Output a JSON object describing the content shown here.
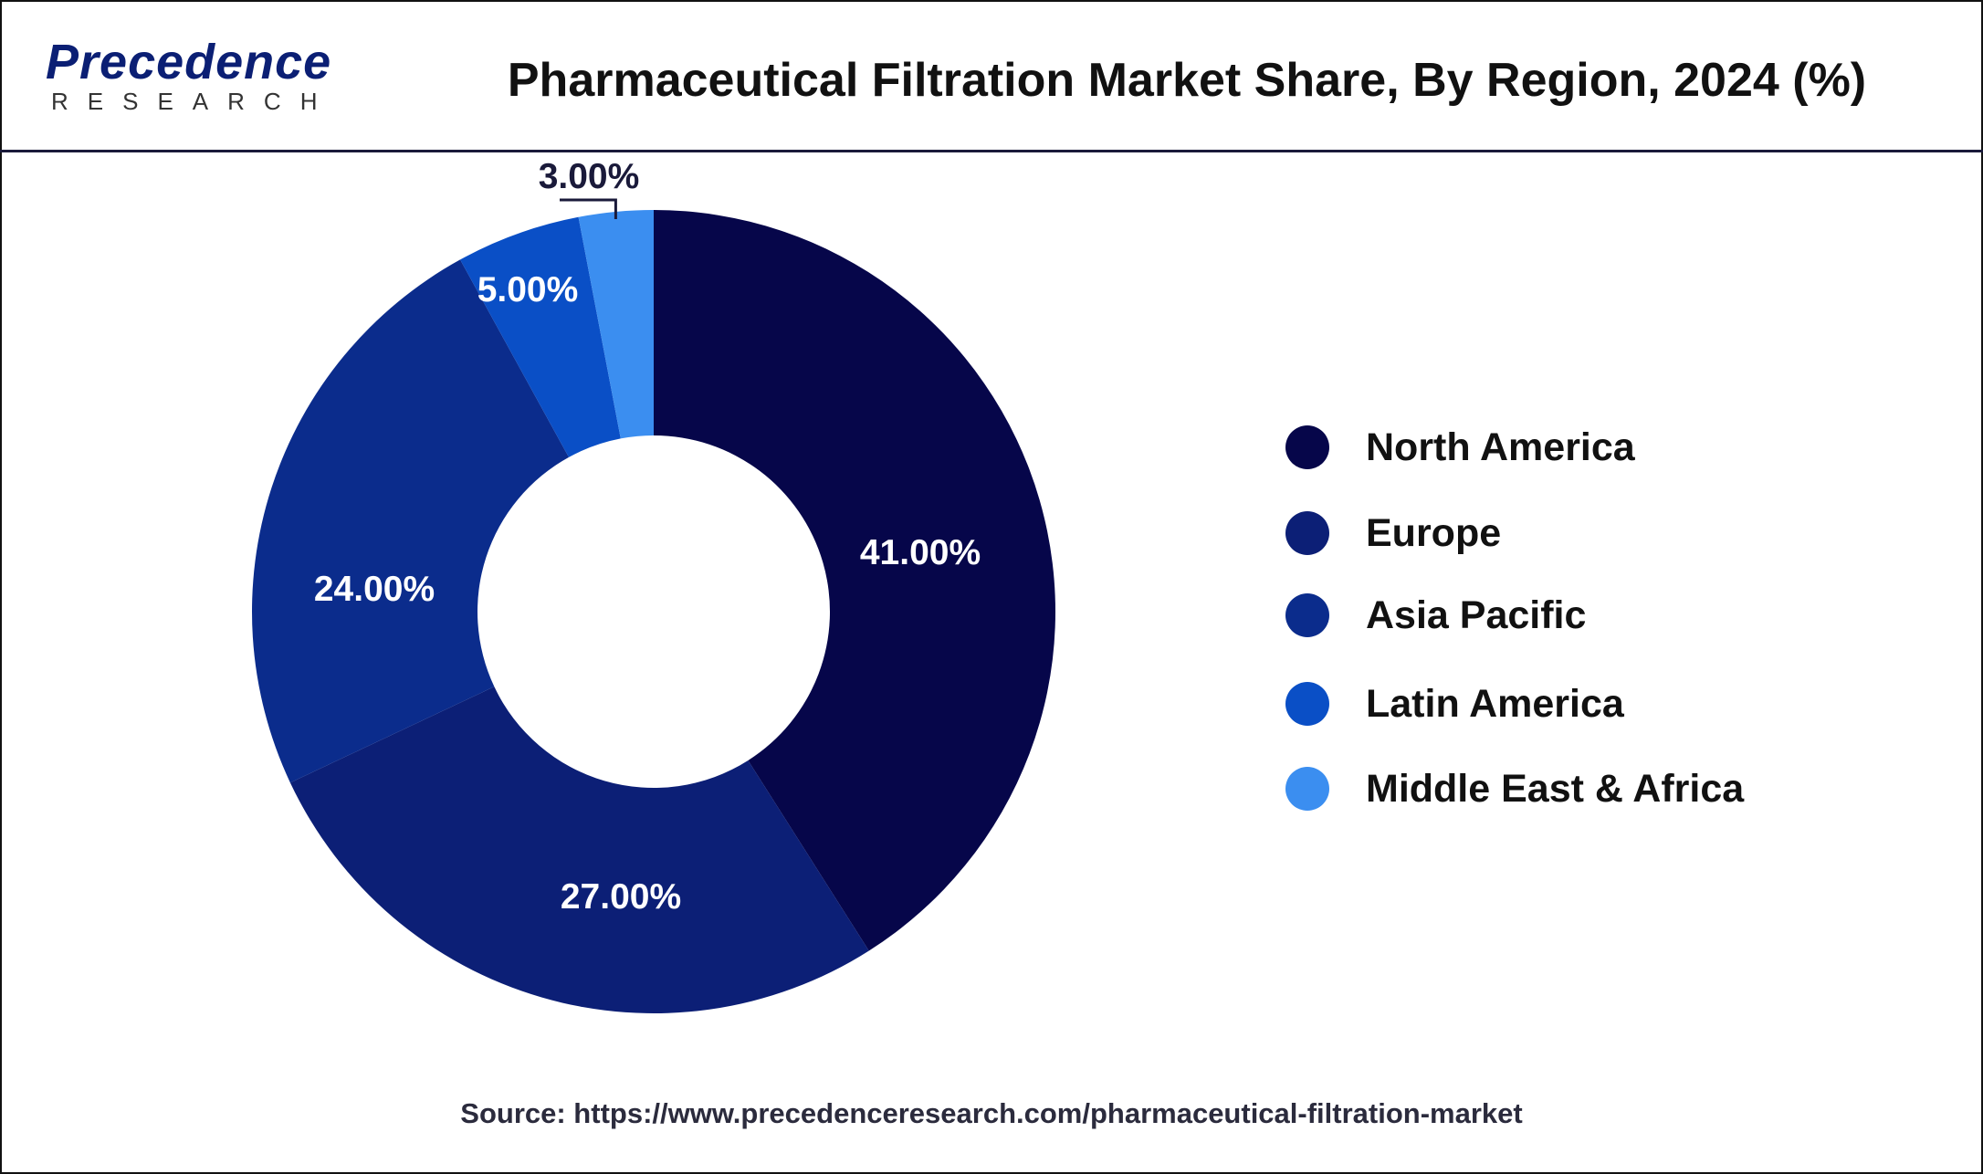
{
  "logo": {
    "name": "Precedence",
    "sub": "RESEARCH"
  },
  "title": "Pharmaceutical Filtration Market Share, By Region, 2024 (%)",
  "source": "Source: https://www.precedenceresearch.com/pharmaceutical-filtration-market",
  "chart_data": {
    "type": "pie",
    "variant": "donut",
    "title": "Pharmaceutical Filtration Market Share, By Region, 2024 (%)",
    "categories": [
      "North America",
      "Europe",
      "Asia Pacific",
      "Latin America",
      "Middle East & Africa"
    ],
    "values": [
      41,
      27,
      24,
      5,
      3
    ],
    "labels": [
      "41.00%",
      "27.00%",
      "24.00%",
      "5.00%",
      "3.00%"
    ],
    "colors": [
      "#06064a",
      "#0c1f76",
      "#0b2c8c",
      "#0a4fc6",
      "#3b8ef0"
    ],
    "legend_position": "right"
  }
}
